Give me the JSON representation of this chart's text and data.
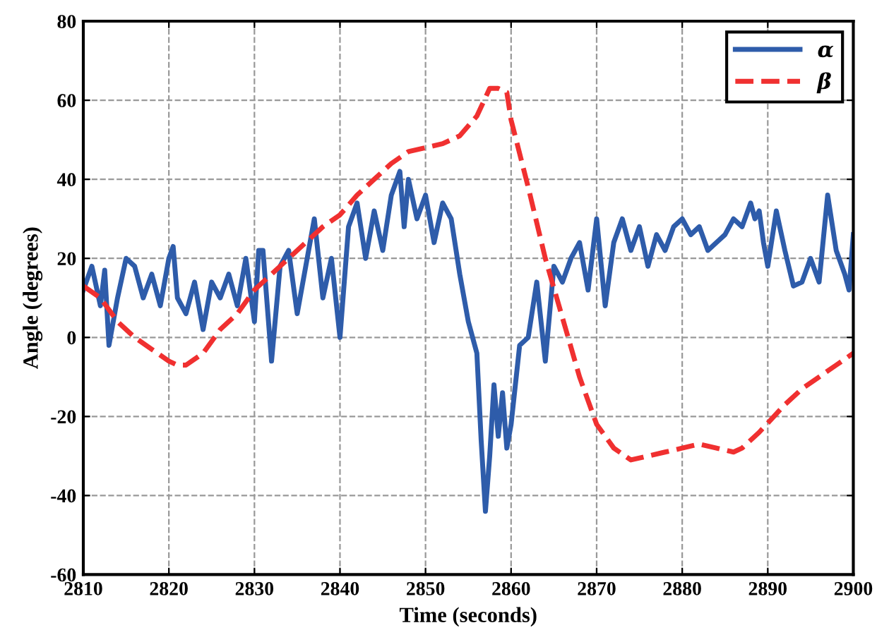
{
  "chart_data": {
    "type": "line",
    "xlabel": "Time (seconds)",
    "ylabel": "Angle (degrees)",
    "xlim": [
      2810,
      2900
    ],
    "xticks": [
      2810,
      2820,
      2830,
      2840,
      2850,
      2860,
      2870,
      2880,
      2890,
      2900
    ],
    "ylim": [
      -60,
      80
    ],
    "yticks": [
      -60,
      -40,
      -20,
      0,
      20,
      40,
      60,
      80
    ],
    "grid": true,
    "legend": "top right",
    "series": [
      {
        "name": "α",
        "color": "#2e5caa",
        "line_style": "solid",
        "x": [
          2810,
          2811,
          2812,
          2812.5,
          2813,
          2814,
          2815,
          2816,
          2817,
          2818,
          2819,
          2820,
          2820.5,
          2821,
          2822,
          2823,
          2824,
          2825,
          2826,
          2827,
          2828,
          2829,
          2830,
          2830.5,
          2831,
          2832,
          2833,
          2834,
          2835,
          2836,
          2837,
          2838,
          2839,
          2840,
          2841,
          2842,
          2843,
          2844,
          2845,
          2846,
          2847,
          2847.5,
          2848,
          2849,
          2850,
          2851,
          2852,
          2853,
          2854,
          2855,
          2856,
          2856.5,
          2857,
          2857.5,
          2858,
          2858.5,
          2859,
          2859.5,
          2860,
          2861,
          2862,
          2863,
          2864,
          2865,
          2866,
          2867,
          2868,
          2869,
          2870,
          2871,
          2872,
          2873,
          2874,
          2875,
          2876,
          2877,
          2878,
          2879,
          2880,
          2881,
          2882,
          2883,
          2884,
          2885,
          2886,
          2887,
          2888,
          2888.5,
          2889,
          2889.5,
          2890,
          2891,
          2892,
          2893,
          2894,
          2895,
          2896,
          2897,
          2898,
          2899,
          2899.5,
          2900
        ],
        "values": [
          12,
          18,
          8,
          17,
          -2,
          10,
          20,
          18,
          10,
          16,
          8,
          20,
          23,
          10,
          6,
          14,
          2,
          14,
          10,
          16,
          8,
          20,
          4,
          22,
          22,
          -6,
          18,
          22,
          6,
          18,
          30,
          10,
          20,
          0,
          28,
          34,
          20,
          32,
          22,
          36,
          42,
          28,
          40,
          30,
          36,
          24,
          34,
          30,
          16,
          4,
          -4,
          -26,
          -44,
          -30,
          -12,
          -25,
          -14,
          -28,
          -22,
          -2,
          0,
          14,
          -6,
          18,
          14,
          20,
          24,
          12,
          30,
          8,
          24,
          30,
          22,
          28,
          18,
          26,
          22,
          28,
          30,
          26,
          28,
          22,
          24,
          26,
          30,
          28,
          34,
          30,
          32,
          24,
          18,
          32,
          22,
          13,
          14,
          20,
          14,
          36,
          22,
          16,
          12,
          26
        ]
      },
      {
        "name": "β",
        "color": "#f03030",
        "line_style": "dashed",
        "x": [
          2810,
          2812,
          2814,
          2816,
          2818,
          2820,
          2821,
          2822,
          2824,
          2826,
          2828,
          2830,
          2832,
          2834,
          2836,
          2838,
          2840,
          2842,
          2844,
          2846,
          2848,
          2850,
          2852,
          2854,
          2856,
          2857.5,
          2858.5,
          2859.5,
          2860,
          2862,
          2864,
          2866,
          2868,
          2870,
          2872,
          2874,
          2876,
          2878,
          2880,
          2882,
          2884,
          2886,
          2887,
          2889,
          2892,
          2894,
          2896,
          2898,
          2900
        ],
        "values": [
          13,
          10,
          4,
          0,
          -3,
          -6,
          -7,
          -7,
          -4,
          2,
          6,
          12,
          16,
          20,
          24,
          28,
          31,
          36,
          40,
          44,
          47,
          48,
          49,
          51,
          56,
          63,
          63,
          62,
          55,
          38,
          20,
          5,
          -10,
          -22,
          -28,
          -31,
          -30,
          -29,
          -28,
          -27,
          -28,
          -29,
          -28,
          -24,
          -17,
          -13,
          -10,
          -7,
          -4
        ]
      }
    ]
  }
}
